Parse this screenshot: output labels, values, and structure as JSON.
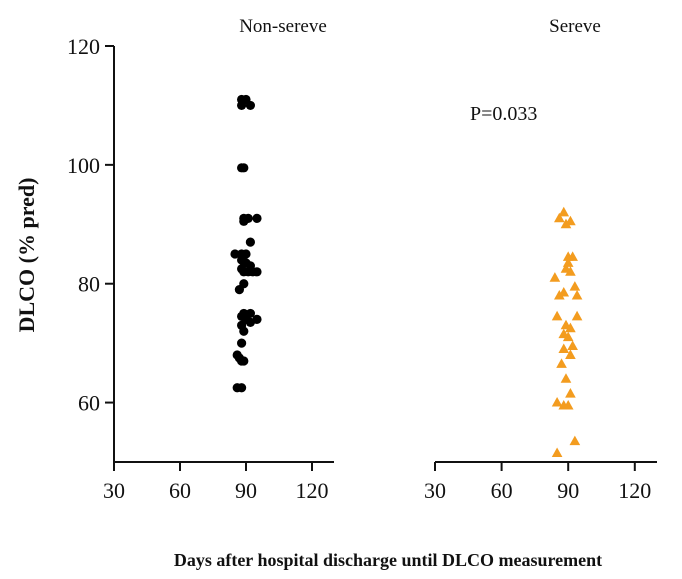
{
  "chart_data": {
    "type": "scatter",
    "ylabel": "DLCO (% pred)",
    "xlabel": "Days after hospital discharge until DLCO measurement",
    "ylim": [
      50,
      120
    ],
    "yticks": [
      60,
      80,
      100,
      120
    ],
    "annotation": "P=0.033",
    "panels": [
      {
        "title": "Non-sereve",
        "xlim": [
          30,
          130
        ],
        "xticks": [
          30,
          60,
          90,
          120
        ],
        "marker": "circle",
        "color": "#000000",
        "points": [
          {
            "x": 88,
            "y": 111
          },
          {
            "x": 90,
            "y": 111
          },
          {
            "x": 88,
            "y": 110
          },
          {
            "x": 92,
            "y": 110
          },
          {
            "x": 88,
            "y": 99.5
          },
          {
            "x": 89,
            "y": 99.5
          },
          {
            "x": 89,
            "y": 91
          },
          {
            "x": 91,
            "y": 91
          },
          {
            "x": 95,
            "y": 91
          },
          {
            "x": 89,
            "y": 90.5
          },
          {
            "x": 92,
            "y": 87
          },
          {
            "x": 85,
            "y": 85
          },
          {
            "x": 88,
            "y": 85
          },
          {
            "x": 90,
            "y": 85
          },
          {
            "x": 88,
            "y": 84
          },
          {
            "x": 90,
            "y": 83.5
          },
          {
            "x": 92,
            "y": 83
          },
          {
            "x": 88,
            "y": 82.5
          },
          {
            "x": 89,
            "y": 82
          },
          {
            "x": 91,
            "y": 82
          },
          {
            "x": 93,
            "y": 82
          },
          {
            "x": 95,
            "y": 82
          },
          {
            "x": 89,
            "y": 80
          },
          {
            "x": 87,
            "y": 79
          },
          {
            "x": 89,
            "y": 75
          },
          {
            "x": 92,
            "y": 75
          },
          {
            "x": 88,
            "y": 74.5
          },
          {
            "x": 90,
            "y": 74
          },
          {
            "x": 95,
            "y": 74
          },
          {
            "x": 92,
            "y": 73.5
          },
          {
            "x": 88,
            "y": 73
          },
          {
            "x": 89,
            "y": 72
          },
          {
            "x": 88,
            "y": 70
          },
          {
            "x": 86,
            "y": 68
          },
          {
            "x": 87,
            "y": 67.5
          },
          {
            "x": 88,
            "y": 67
          },
          {
            "x": 89,
            "y": 67
          },
          {
            "x": 86,
            "y": 62.5
          },
          {
            "x": 88,
            "y": 62.5
          }
        ]
      },
      {
        "title": "Sereve",
        "xlim": [
          30,
          130
        ],
        "xticks": [
          30,
          60,
          90,
          120
        ],
        "marker": "triangle",
        "color": "#f39c1f",
        "points": [
          {
            "x": 88,
            "y": 92
          },
          {
            "x": 86,
            "y": 91
          },
          {
            "x": 91,
            "y": 90.5
          },
          {
            "x": 89,
            "y": 90
          },
          {
            "x": 90,
            "y": 84.5
          },
          {
            "x": 92,
            "y": 84.5
          },
          {
            "x": 90,
            "y": 83.5
          },
          {
            "x": 89,
            "y": 82.5
          },
          {
            "x": 91,
            "y": 82
          },
          {
            "x": 84,
            "y": 81
          },
          {
            "x": 93,
            "y": 79.5
          },
          {
            "x": 88,
            "y": 78.5
          },
          {
            "x": 86,
            "y": 78
          },
          {
            "x": 94,
            "y": 78
          },
          {
            "x": 85,
            "y": 74.5
          },
          {
            "x": 94,
            "y": 74.5
          },
          {
            "x": 89,
            "y": 73
          },
          {
            "x": 91,
            "y": 72.5
          },
          {
            "x": 88,
            "y": 71.5
          },
          {
            "x": 90,
            "y": 71
          },
          {
            "x": 92,
            "y": 69.5
          },
          {
            "x": 88,
            "y": 69
          },
          {
            "x": 91,
            "y": 68
          },
          {
            "x": 87,
            "y": 66.5
          },
          {
            "x": 89,
            "y": 64
          },
          {
            "x": 91,
            "y": 61.5
          },
          {
            "x": 85,
            "y": 60
          },
          {
            "x": 88,
            "y": 59.5
          },
          {
            "x": 90,
            "y": 59.5
          },
          {
            "x": 93,
            "y": 53.5
          },
          {
            "x": 85,
            "y": 51.5
          }
        ]
      }
    ]
  }
}
